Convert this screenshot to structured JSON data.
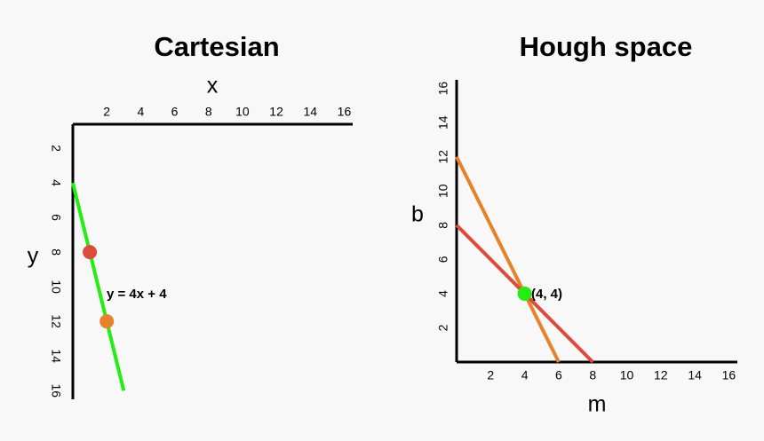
{
  "chart_data": [
    {
      "type": "line",
      "title": "Cartesian",
      "x_label": "x",
      "y_label": "y",
      "xlim": [
        0,
        16.5
      ],
      "ylim": [
        0,
        16.5
      ],
      "y_inverted": true,
      "x_axis_position": "top",
      "xticks": [
        2,
        4,
        6,
        8,
        10,
        12,
        14,
        16
      ],
      "yticks": [
        2,
        4,
        6,
        8,
        10,
        12,
        14,
        16
      ],
      "lines": [
        {
          "x": [
            0,
            3
          ],
          "y": [
            4,
            16
          ],
          "color": "#22ee11"
        }
      ],
      "points": [
        {
          "x": 1,
          "y": 8,
          "color": "#e04a3a"
        },
        {
          "x": 2,
          "y": 12,
          "color": "#e8822a"
        }
      ],
      "annotation": "y = 4x + 4"
    },
    {
      "type": "line",
      "title": "Hough space",
      "x_label": "m",
      "y_label": "b",
      "xlim": [
        0,
        16.5
      ],
      "ylim": [
        0,
        16.5
      ],
      "y_inverted": false,
      "x_axis_position": "bottom",
      "xticks": [
        2,
        4,
        6,
        8,
        10,
        12,
        14,
        16
      ],
      "yticks": [
        2,
        4,
        6,
        8,
        10,
        12,
        14,
        16
      ],
      "lines": [
        {
          "x": [
            0,
            6
          ],
          "y": [
            12,
            0
          ],
          "color": "#e8822a"
        },
        {
          "x": [
            0,
            8
          ],
          "y": [
            8,
            0
          ],
          "color": "#e04a3a"
        }
      ],
      "points": [
        {
          "x": 4,
          "y": 4,
          "color": "#22ee11"
        }
      ],
      "annotation": "(4, 4)"
    }
  ]
}
